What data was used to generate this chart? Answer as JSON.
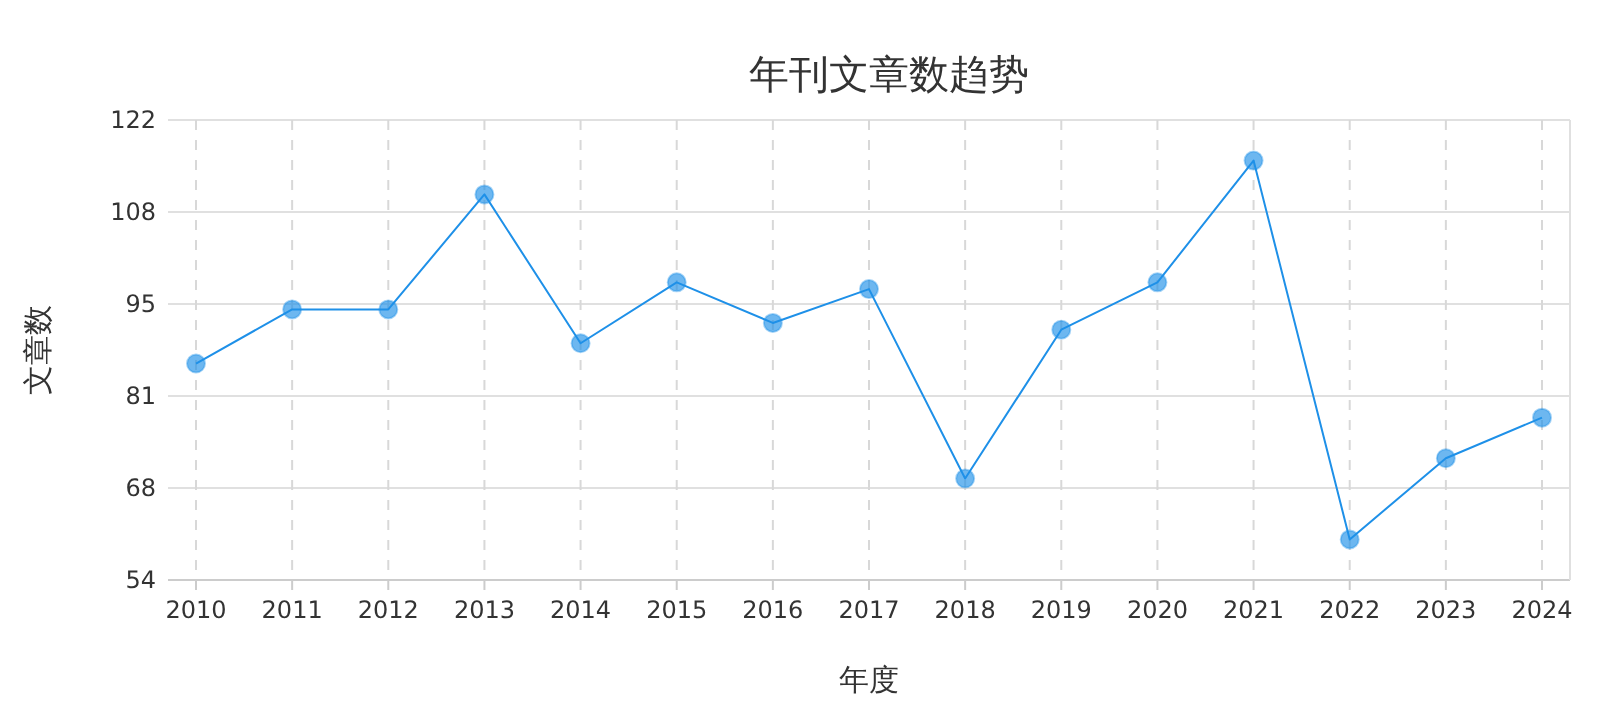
{
  "chart_data": {
    "type": "line",
    "title": "年刊文章数趋势",
    "xlabel": "年度",
    "ylabel": "文章数",
    "categories": [
      "2010",
      "2011",
      "2012",
      "2013",
      "2014",
      "2015",
      "2016",
      "2017",
      "2018",
      "2019",
      "2020",
      "2021",
      "2022",
      "2023",
      "2024"
    ],
    "series": [
      {
        "color": "#1e90e8",
        "values": [
          86,
          94,
          94,
          111,
          89,
          98,
          92,
          97,
          69,
          91,
          98,
          116,
          60,
          72,
          78
        ]
      }
    ],
    "ylim": [
      54,
      122
    ],
    "yticks": [
      54,
      {
        "value": 67.6,
        "label": "68"
      },
      {
        "value": 81.2,
        "label": "81"
      },
      {
        "value": 94.8,
        "label": "95"
      },
      {
        "value": 108.4,
        "label": "108"
      },
      122
    ],
    "grid": true,
    "marker": "circle",
    "line_style": "solid"
  }
}
